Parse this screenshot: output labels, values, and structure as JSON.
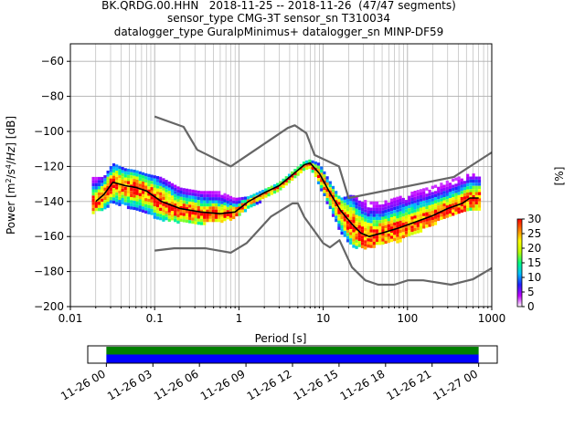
{
  "chart_data": [
    {
      "type": "heatmap",
      "title_lines": [
        "BK.QRDG.00.HHN   2018-11-25 -- 2018-11-26  (47/47 segments)",
        "sensor_type CMG-3T sensor_sn T310034",
        "datalogger_type GuralpMinimus+ datalogger_sn MINP-DF59"
      ],
      "xlabel": "Period [s]",
      "ylabel": "Power [m²/s⁴/Hz] [dB]",
      "xscale": "log",
      "xlim": [
        0.01,
        1000
      ],
      "ylim": [
        -200,
        -50
      ],
      "xticks": [
        {
          "v": 0.01,
          "label": "0.01"
        },
        {
          "v": 0.1,
          "label": "0.1"
        },
        {
          "v": 1,
          "label": "1"
        },
        {
          "v": 10,
          "label": "10"
        },
        {
          "v": 100,
          "label": "100"
        },
        {
          "v": 1000,
          "label": "1000"
        }
      ],
      "yticks": [
        -60,
        -80,
        -100,
        -120,
        -140,
        -160,
        -180,
        -200
      ],
      "grid": true,
      "colorbar": {
        "label": "[%]",
        "ticks": [
          0,
          5,
          10,
          15,
          20,
          25,
          30
        ],
        "min": 0,
        "max": 30,
        "colors": [
          "#ffffff",
          "#c000ff",
          "#2020ff",
          "#00c0ff",
          "#00ff80",
          "#c0ff00",
          "#ffff00",
          "#ff8000",
          "#ff0000"
        ]
      },
      "series": [
        {
          "role": "new_high_noise_model",
          "color": "#666666",
          "x": [
            0.1,
            0.22,
            0.32,
            0.8,
            3.8,
            4.6,
            6.3,
            7.9,
            15.4,
            20,
            354.8,
            1000
          ],
          "y": [
            -91.5,
            -97.4,
            -110.5,
            -120,
            -98,
            -96.5,
            -101,
            -113.5,
            -120,
            -138,
            -126,
            -112
          ]
        },
        {
          "role": "new_low_noise_model",
          "color": "#666666",
          "x": [
            0.1,
            0.17,
            0.4,
            0.8,
            1.24,
            2.4,
            4.3,
            5,
            6,
            10,
            12,
            15.6,
            21.9,
            31.6,
            45,
            70,
            101,
            154,
            328,
            600,
            1000
          ],
          "y": [
            -168,
            -166.7,
            -166.7,
            -169.2,
            -163.7,
            -148.6,
            -141.1,
            -141.1,
            -149,
            -163.8,
            -166.2,
            -162.1,
            -177.5,
            -185,
            -187.5,
            -187.5,
            -185,
            -185,
            -187.5,
            -184.4,
            -178
          ]
        },
        {
          "role": "mean_psd",
          "color": "#000000",
          "x": [
            0.02,
            0.025,
            0.032,
            0.045,
            0.06,
            0.08,
            0.12,
            0.2,
            0.35,
            0.6,
            0.9,
            1.3,
            2,
            3,
            4.5,
            6,
            7,
            9,
            12,
            16,
            22,
            28,
            35,
            50,
            80,
            120,
            200,
            300,
            450,
            550,
            700
          ],
          "y": [
            -140,
            -136,
            -129,
            -131,
            -132,
            -134,
            -140,
            -144,
            -146,
            -147,
            -146,
            -140,
            -135,
            -131,
            -124,
            -119,
            -118,
            -124,
            -135,
            -145,
            -153,
            -158,
            -160,
            -158,
            -155,
            -152,
            -148,
            -144,
            -141,
            -138,
            -138
          ]
        }
      ],
      "density_band": {
        "x": [
          0.018,
          0.025,
          0.032,
          0.045,
          0.06,
          0.08,
          0.12,
          0.2,
          0.35,
          0.6,
          0.9,
          1.3,
          2,
          3,
          4.5,
          6,
          7,
          9,
          12,
          16,
          22,
          28,
          35,
          50,
          80,
          120,
          200,
          300,
          450,
          550,
          700
        ],
        "hi": [
          -126,
          -126,
          -118,
          -121,
          -122,
          -124,
          -126,
          -132,
          -134,
          -134,
          -138,
          -137,
          -133,
          -129,
          -122,
          -117,
          -116,
          -118,
          -128,
          -138,
          -136,
          -138,
          -140,
          -140,
          -137,
          -134,
          -131,
          -128,
          -125,
          -124,
          -124
        ],
        "lo": [
          -146,
          -144,
          -140,
          -142,
          -144,
          -146,
          -150,
          -151,
          -152,
          -151,
          -149,
          -144,
          -138,
          -134,
          -127,
          -121,
          -120,
          -130,
          -143,
          -157,
          -165,
          -166,
          -166,
          -164,
          -162,
          -158,
          -153,
          -148,
          -146,
          -144,
          -144
        ]
      }
    },
    {
      "type": "timeline",
      "x_ticks": [
        "11-26 00",
        "11-26 03",
        "11-26 06",
        "11-26 09",
        "11-26 12",
        "11-26 15",
        "11-26 18",
        "11-26 21",
        "11-27 00"
      ],
      "tracks": [
        {
          "color": "#008000",
          "start_hours": 0,
          "end_hours": 24
        },
        {
          "color": "#0000ff",
          "start_hours": 0,
          "end_hours": 24
        }
      ],
      "xlim_hours": [
        -1.2,
        25.2
      ]
    }
  ]
}
